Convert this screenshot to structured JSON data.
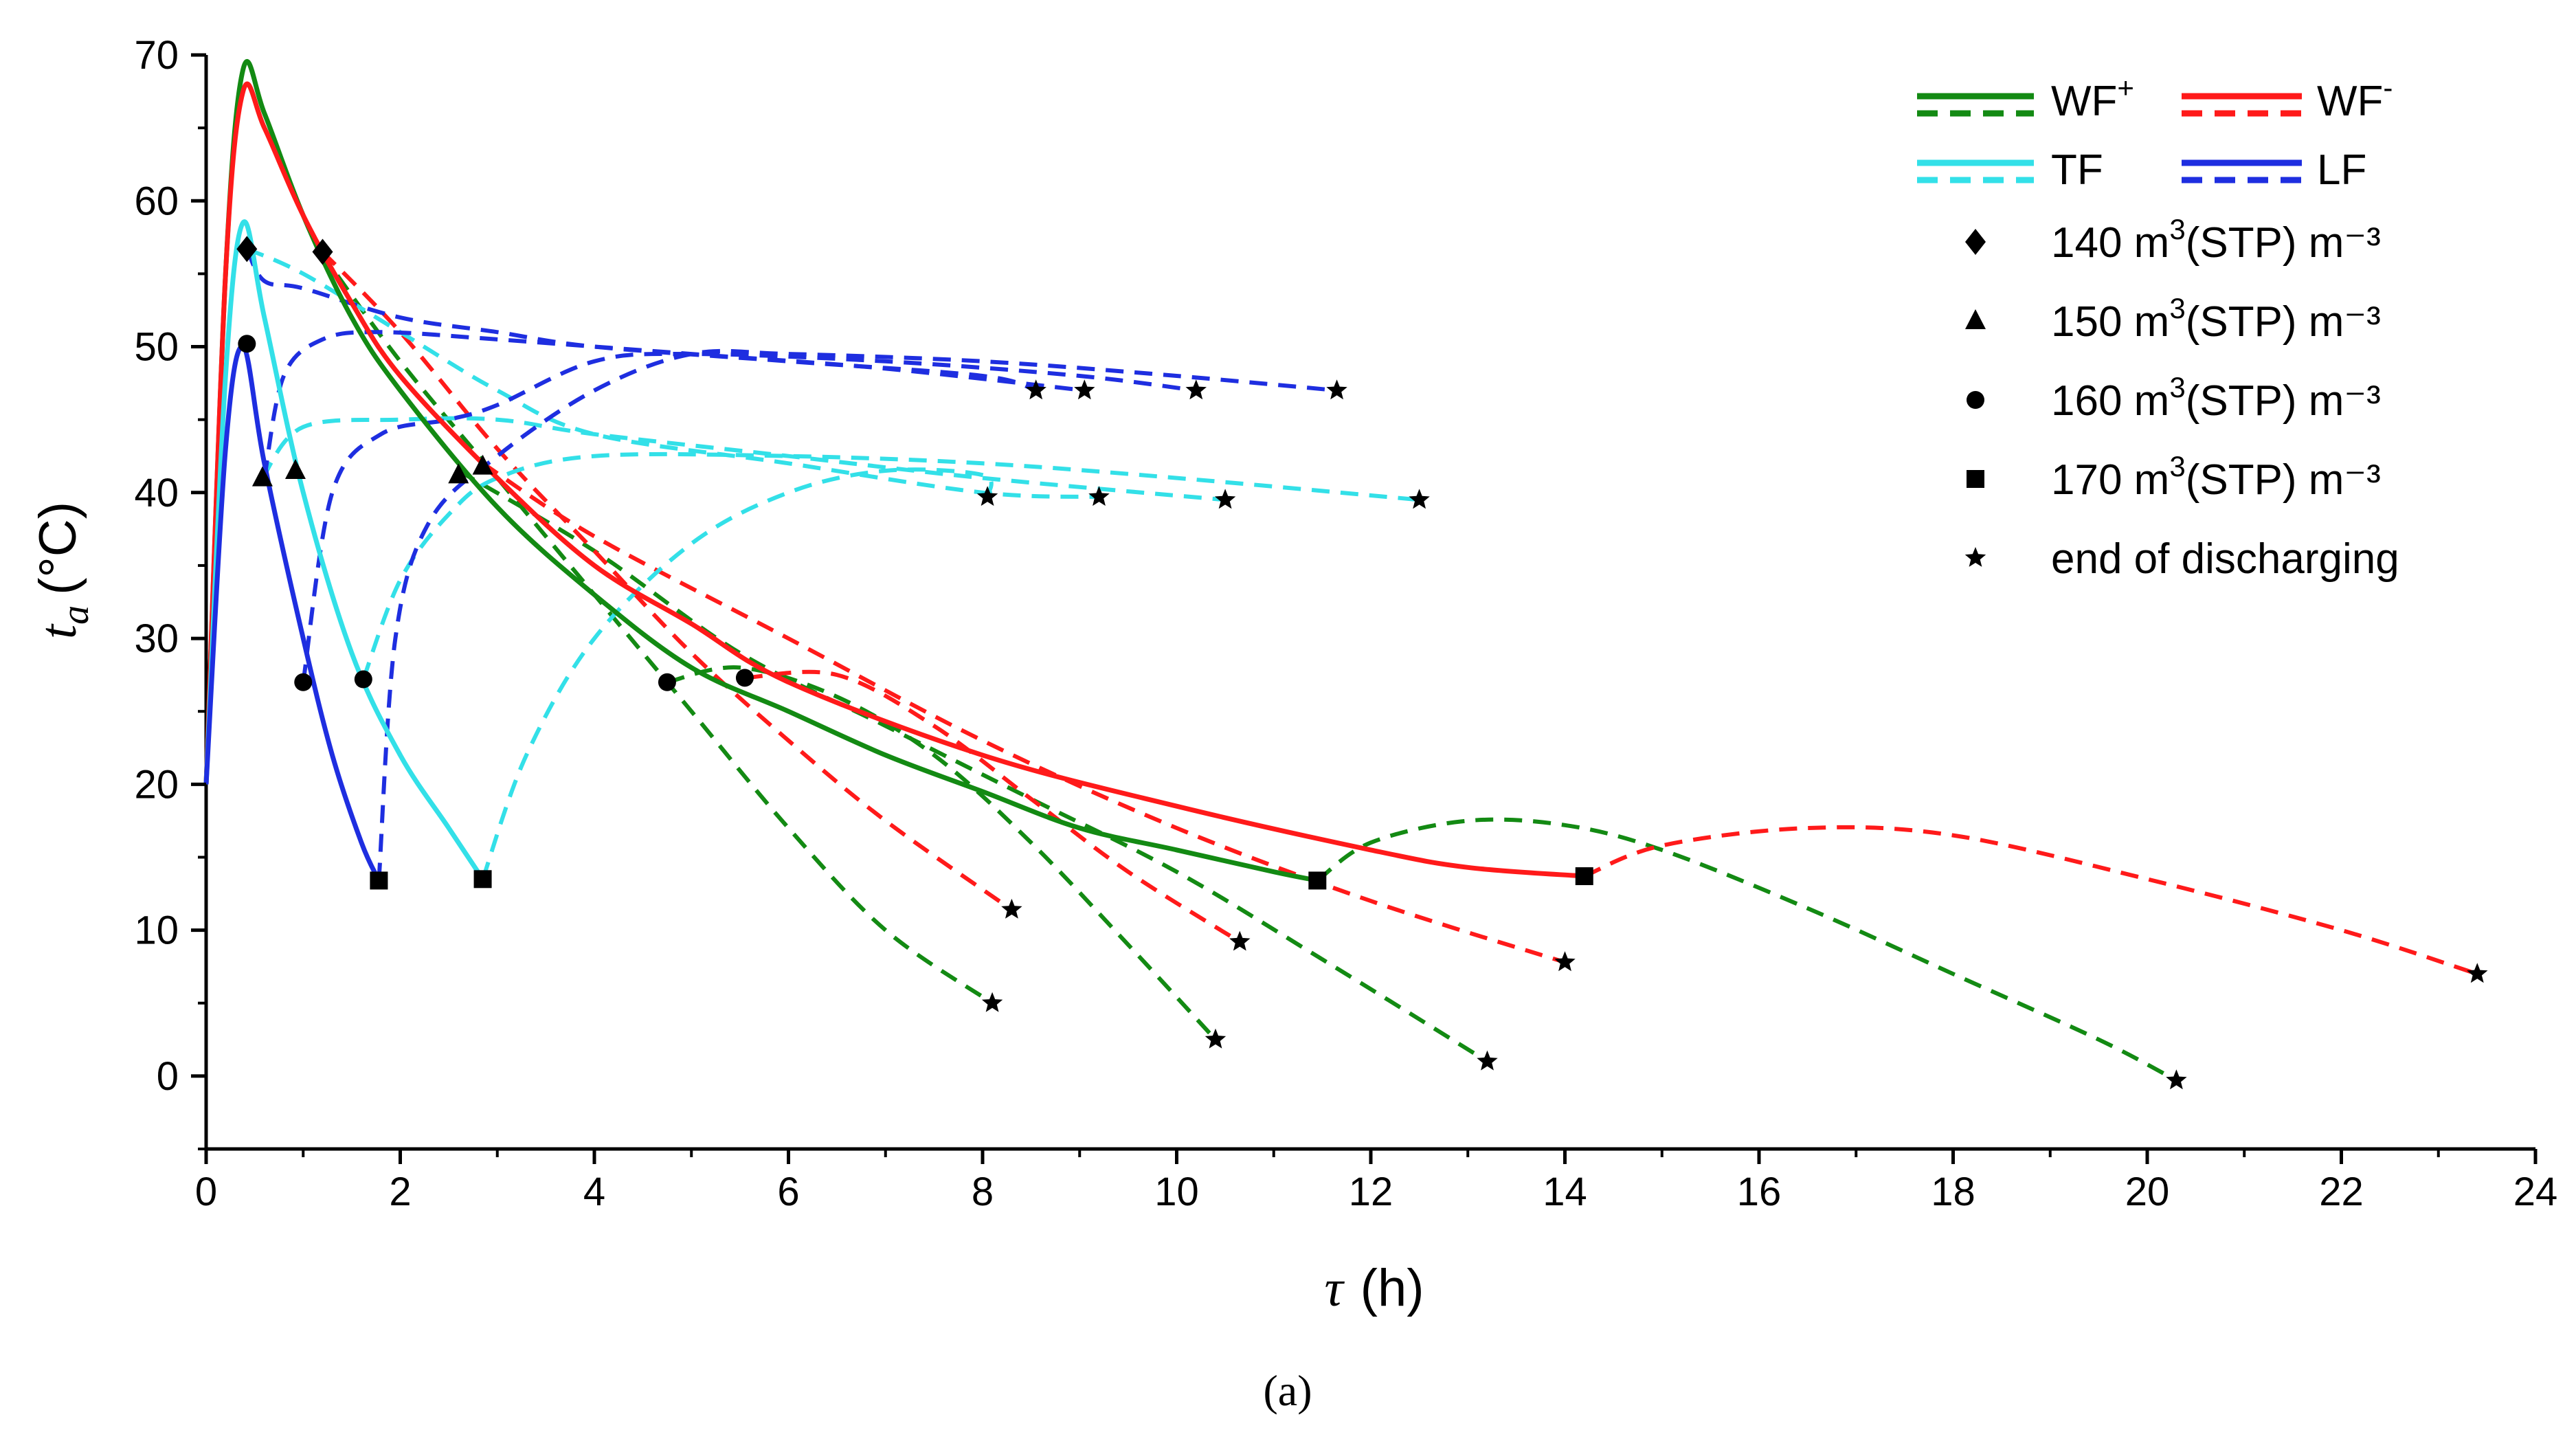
{
  "chart_data": {
    "type": "line",
    "title": "",
    "caption": "(a)",
    "xlabel_symbol": "τ",
    "xlabel_unit": "(h)",
    "ylabel_symbol": "t",
    "ylabel_sub": "a",
    "ylabel_unit": "(°C)",
    "xlim": [
      0,
      24
    ],
    "ylim": [
      -5,
      70
    ],
    "xticks": [
      "0",
      "2",
      "4",
      "6",
      "8",
      "10",
      "12",
      "14",
      "16",
      "18",
      "20",
      "22",
      "24"
    ],
    "yticks": [
      "0",
      "10",
      "20",
      "30",
      "40",
      "50",
      "60",
      "70"
    ],
    "colors": {
      "WF_plus": "#138a13",
      "WF_minus": "#ff1a1a",
      "TF": "#33e0e8",
      "LF": "#1e2ee0"
    },
    "legend": {
      "WF_plus": {
        "text": "WF",
        "sup": "+"
      },
      "WF_minus": {
        "text": "WF",
        "sup": "-"
      },
      "TF": {
        "text": "TF"
      },
      "LF": {
        "text": "LF"
      },
      "markers": [
        {
          "shape": "diamond",
          "pre": "140 m",
          "sup": "3",
          "post": "(STP) m⁻³"
        },
        {
          "shape": "triangle",
          "pre": "150 m",
          "sup": "3",
          "post": "(STP) m⁻³"
        },
        {
          "shape": "circle",
          "pre": "160 m",
          "sup": "3",
          "post": "(STP) m⁻³"
        },
        {
          "shape": "square",
          "pre": "170 m",
          "sup": "3",
          "post": "(STP) m⁻³"
        },
        {
          "shape": "star",
          "pre": "end of discharging",
          "sup": "",
          "post": ""
        }
      ]
    },
    "series": [
      {
        "name": "WF+ charging",
        "color": "WF_plus",
        "dash": false,
        "points": [
          [
            0,
            20
          ],
          [
            0.2,
            55
          ],
          [
            0.38,
            69
          ],
          [
            0.6,
            66
          ],
          [
            1,
            59
          ],
          [
            1.5,
            52
          ],
          [
            2,
            47
          ],
          [
            3,
            39
          ],
          [
            4,
            33
          ],
          [
            5,
            28
          ],
          [
            6,
            25
          ],
          [
            7,
            22
          ],
          [
            8,
            19.5
          ],
          [
            9,
            17
          ],
          [
            10,
            15.5
          ],
          [
            11,
            14
          ],
          [
            11.45,
            13.4
          ]
        ]
      },
      {
        "name": "WF- charging",
        "color": "WF_minus",
        "dash": false,
        "points": [
          [
            0,
            20
          ],
          [
            0.2,
            55
          ],
          [
            0.38,
            67.5
          ],
          [
            0.6,
            65
          ],
          [
            1,
            59
          ],
          [
            1.5,
            53
          ],
          [
            2,
            48
          ],
          [
            3,
            41
          ],
          [
            4,
            35
          ],
          [
            5,
            31
          ],
          [
            6,
            27
          ],
          [
            8,
            22
          ],
          [
            10,
            18.5
          ],
          [
            12,
            15.5
          ],
          [
            13,
            14.3
          ],
          [
            14.2,
            13.7
          ]
        ]
      },
      {
        "name": "TF charging",
        "color": "TF",
        "dash": false,
        "points": [
          [
            0,
            20
          ],
          [
            0.2,
            48
          ],
          [
            0.38,
            58.5
          ],
          [
            0.6,
            52
          ],
          [
            1,
            40
          ],
          [
            1.5,
            29
          ],
          [
            2,
            22
          ],
          [
            2.5,
            17
          ],
          [
            2.85,
            13.5
          ]
        ]
      },
      {
        "name": "LF charging",
        "color": "LF",
        "dash": false,
        "points": [
          [
            0,
            20
          ],
          [
            0.2,
            43
          ],
          [
            0.38,
            50
          ],
          [
            0.6,
            42
          ],
          [
            1,
            30
          ],
          [
            1.3,
            22
          ],
          [
            1.6,
            16
          ],
          [
            1.78,
            13.4
          ]
        ]
      },
      {
        "name": "WF+ 140",
        "color": "WF_plus",
        "dash": true,
        "points": [
          [
            1.18,
            56.5
          ],
          [
            2,
            49
          ],
          [
            3,
            41
          ],
          [
            4,
            33
          ],
          [
            5,
            25
          ],
          [
            6,
            17
          ],
          [
            7,
            10
          ],
          [
            8.1,
            5
          ]
        ]
      },
      {
        "name": "WF+ 160",
        "color": "WF_plus",
        "dash": true,
        "points": [
          [
            4.75,
            27
          ],
          [
            5.5,
            28
          ],
          [
            6.5,
            26
          ],
          [
            7.5,
            22
          ],
          [
            8.5,
            16
          ],
          [
            9.5,
            9
          ],
          [
            10.4,
            2.5
          ]
        ]
      },
      {
        "name": "WF+ 150",
        "color": "WF_plus",
        "dash": true,
        "points": [
          [
            2.6,
            41.5
          ],
          [
            4,
            36
          ],
          [
            5.5,
            29
          ],
          [
            7,
            24
          ],
          [
            8.5,
            19
          ],
          [
            10,
            14
          ],
          [
            11.5,
            8
          ],
          [
            13.2,
            1
          ]
        ]
      },
      {
        "name": "WF+ 170",
        "color": "WF_plus",
        "dash": true,
        "points": [
          [
            11.45,
            13.4
          ],
          [
            12,
            16
          ],
          [
            13,
            17.5
          ],
          [
            14,
            17.2
          ],
          [
            15,
            15.5
          ],
          [
            16.5,
            11.5
          ],
          [
            18,
            7
          ],
          [
            19.5,
            2.5
          ],
          [
            20.3,
            -0.3
          ]
        ]
      },
      {
        "name": "WF- 140",
        "color": "WF_minus",
        "dash": true,
        "points": [
          [
            1.2,
            56.5
          ],
          [
            2,
            51
          ],
          [
            3,
            43
          ],
          [
            4,
            36
          ],
          [
            5,
            29
          ],
          [
            6,
            23
          ],
          [
            7,
            17.5
          ],
          [
            8.3,
            11.4
          ]
        ]
      },
      {
        "name": "WF- 160",
        "color": "WF_minus",
        "dash": true,
        "points": [
          [
            5.55,
            27.3
          ],
          [
            6.5,
            27.5
          ],
          [
            7.5,
            24
          ],
          [
            8.5,
            19
          ],
          [
            9.5,
            14
          ],
          [
            10.65,
            9.2
          ]
        ]
      },
      {
        "name": "WF- 150",
        "color": "WF_minus",
        "dash": true,
        "points": [
          [
            2.85,
            42
          ],
          [
            4,
            37
          ],
          [
            6,
            30
          ],
          [
            8,
            23
          ],
          [
            10,
            17
          ],
          [
            12,
            12
          ],
          [
            14,
            7.8
          ]
        ]
      },
      {
        "name": "WF- 170",
        "color": "WF_minus",
        "dash": true,
        "points": [
          [
            14.2,
            13.7
          ],
          [
            15,
            15.8
          ],
          [
            16.5,
            17
          ],
          [
            18,
            16.5
          ],
          [
            20,
            13.5
          ],
          [
            22,
            10
          ],
          [
            23.4,
            7
          ]
        ]
      },
      {
        "name": "TF 140",
        "color": "TF",
        "dash": true,
        "points": [
          [
            0.42,
            56.7
          ],
          [
            1,
            55
          ],
          [
            2,
            51
          ],
          [
            3,
            47
          ],
          [
            4,
            44
          ],
          [
            6,
            42
          ],
          [
            8,
            40
          ],
          [
            9.2,
            39.7
          ]
        ]
      },
      {
        "name": "TF 150",
        "color": "TF",
        "dash": true,
        "points": [
          [
            0.58,
            41
          ],
          [
            1,
            44.5
          ],
          [
            2,
            45
          ],
          [
            3,
            45
          ],
          [
            4,
            44
          ],
          [
            6,
            42.5
          ],
          [
            8,
            41
          ],
          [
            10.5,
            39.5
          ]
        ]
      },
      {
        "name": "TF 160",
        "color": "TF",
        "dash": true,
        "points": [
          [
            1.62,
            27.2
          ],
          [
            2,
            34
          ],
          [
            2.5,
            38.5
          ],
          [
            3,
            41
          ],
          [
            4,
            42.5
          ],
          [
            6,
            42.5
          ],
          [
            8,
            42
          ],
          [
            10,
            41
          ],
          [
            12.5,
            39.5
          ]
        ]
      },
      {
        "name": "TF 170",
        "color": "TF",
        "dash": true,
        "points": [
          [
            2.85,
            13.5
          ],
          [
            3.3,
            22
          ],
          [
            4,
            30
          ],
          [
            5,
            36.5
          ],
          [
            6,
            40
          ],
          [
            7,
            41.5
          ],
          [
            8,
            41.2
          ],
          [
            8.05,
            39.7
          ]
        ]
      },
      {
        "name": "LF 140",
        "color": "LF",
        "dash": true,
        "points": [
          [
            0.42,
            56.7
          ],
          [
            0.6,
            54.5
          ],
          [
            1,
            54
          ],
          [
            2,
            52
          ],
          [
            3,
            51
          ],
          [
            4,
            50
          ],
          [
            6,
            49
          ],
          [
            8,
            48
          ],
          [
            8.55,
            47
          ]
        ]
      },
      {
        "name": "LF 150",
        "color": "LF",
        "dash": true,
        "points": [
          [
            0.6,
            41
          ],
          [
            0.8,
            48
          ],
          [
            1.2,
            50.5
          ],
          [
            1.8,
            51
          ],
          [
            3,
            50.5
          ],
          [
            5,
            49.5
          ],
          [
            7,
            48.5
          ],
          [
            9.05,
            47
          ]
        ]
      },
      {
        "name": "LF 160",
        "color": "LF",
        "dash": true,
        "points": [
          [
            1,
            27
          ],
          [
            1.3,
            40
          ],
          [
            1.8,
            44
          ],
          [
            2.5,
            45
          ],
          [
            3,
            46
          ],
          [
            4,
            49
          ],
          [
            5,
            49.5
          ],
          [
            7,
            49
          ],
          [
            9,
            48
          ],
          [
            10.2,
            47
          ]
        ]
      },
      {
        "name": "LF 170",
        "color": "LF",
        "dash": true,
        "points": [
          [
            1.78,
            13.4
          ],
          [
            1.95,
            30
          ],
          [
            2.3,
            38
          ],
          [
            3,
            42.5
          ],
          [
            4,
            47
          ],
          [
            5,
            49.5
          ],
          [
            6,
            49.5
          ],
          [
            8,
            49
          ],
          [
            10,
            48
          ],
          [
            11.65,
            47
          ]
        ]
      }
    ],
    "markers": [
      {
        "shape": "diamond",
        "points": [
          [
            0.42,
            56.7
          ],
          [
            1.2,
            56.5
          ]
        ]
      },
      {
        "shape": "triangle",
        "points": [
          [
            0.58,
            41
          ],
          [
            0.92,
            41.5
          ],
          [
            2.6,
            41.2
          ],
          [
            2.85,
            41.8
          ]
        ]
      },
      {
        "shape": "circle",
        "points": [
          [
            0.42,
            50.2
          ],
          [
            1.0,
            27
          ],
          [
            1.62,
            27.2
          ],
          [
            4.75,
            27
          ],
          [
            5.55,
            27.3
          ]
        ]
      },
      {
        "shape": "square",
        "points": [
          [
            1.78,
            13.4
          ],
          [
            2.85,
            13.5
          ],
          [
            11.45,
            13.4
          ],
          [
            14.2,
            13.7
          ]
        ]
      },
      {
        "shape": "star",
        "points": [
          [
            8.55,
            47
          ],
          [
            9.05,
            47
          ],
          [
            10.2,
            47
          ],
          [
            11.65,
            47
          ],
          [
            8.05,
            39.7
          ],
          [
            9.2,
            39.7
          ],
          [
            10.5,
            39.5
          ],
          [
            12.5,
            39.5
          ],
          [
            8.1,
            5
          ],
          [
            8.3,
            11.4
          ],
          [
            10.4,
            2.5
          ],
          [
            10.65,
            9.2
          ],
          [
            13.2,
            1
          ],
          [
            14,
            7.8
          ],
          [
            20.3,
            -0.3
          ],
          [
            23.4,
            7
          ]
        ]
      }
    ]
  }
}
